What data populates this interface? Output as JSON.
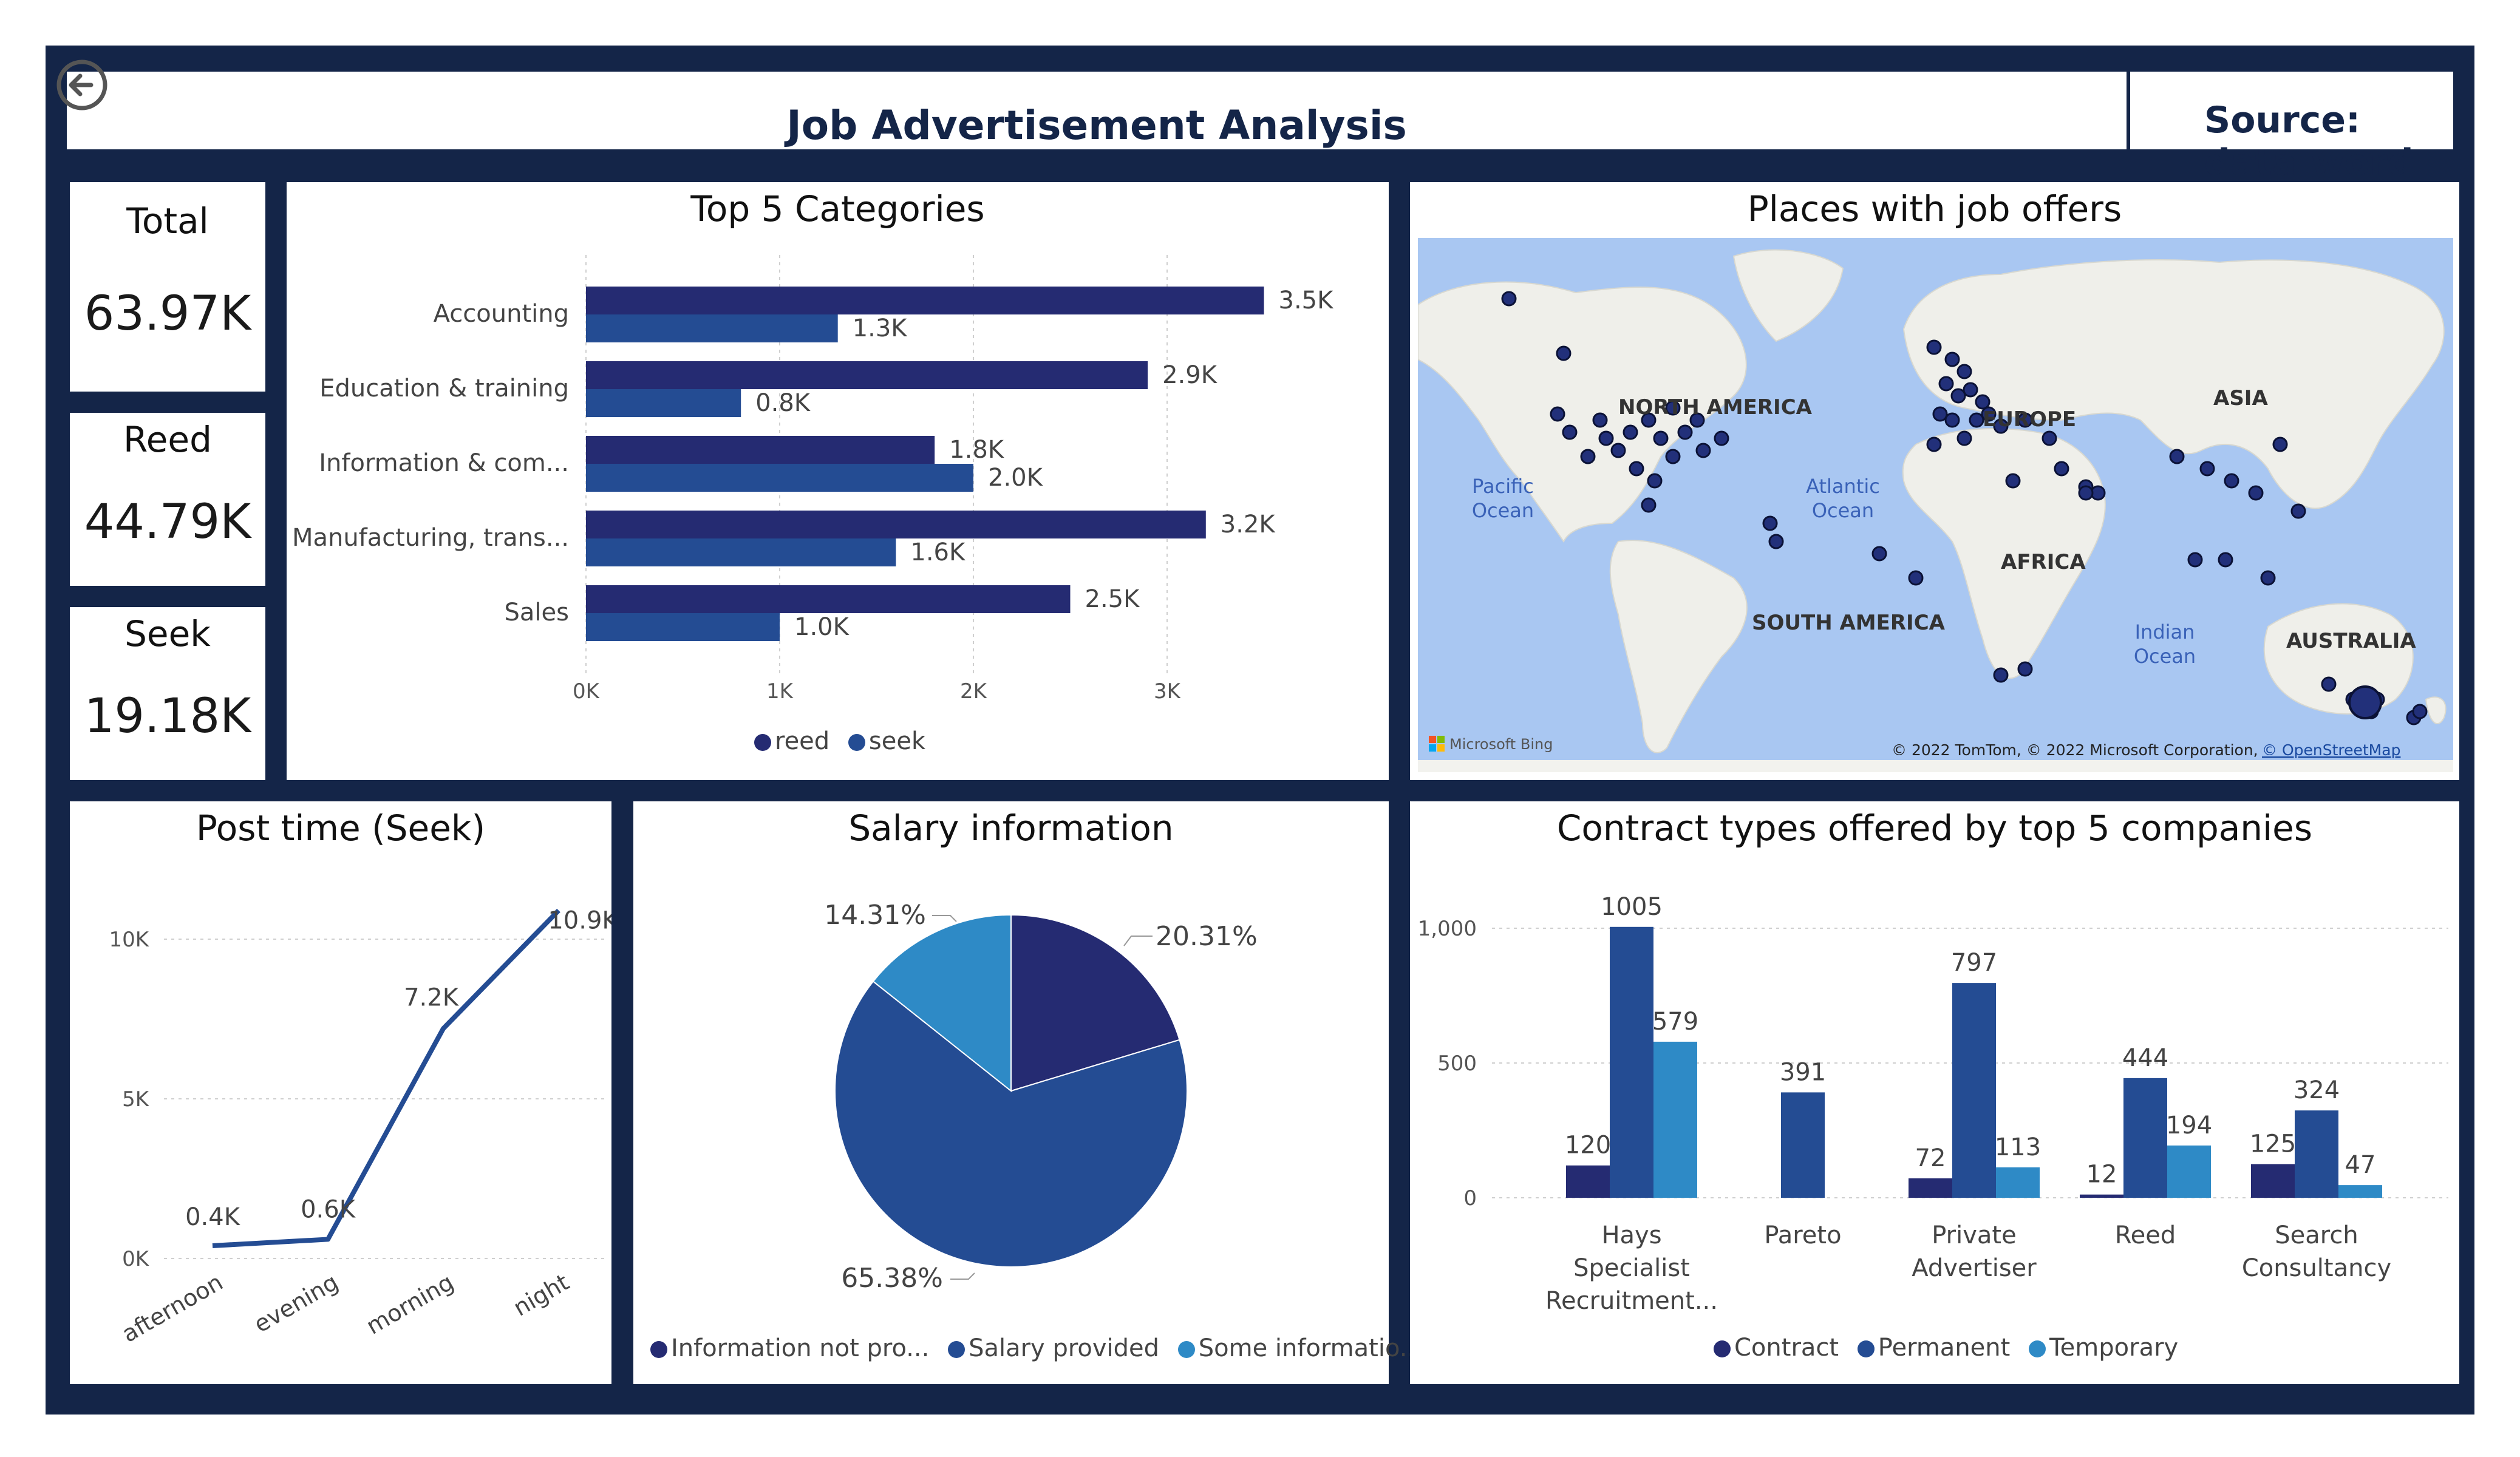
{
  "header": {
    "title": "Job Advertisement Analysis",
    "source": "Source: data.word",
    "back_icon": "back-arrow-icon"
  },
  "kpis": [
    {
      "label": "Total",
      "value": "63.97K"
    },
    {
      "label": "Reed",
      "value": "44.79K"
    },
    {
      "label": "Seek",
      "value": "19.18K"
    }
  ],
  "colors": {
    "navy": "#142548",
    "reed": "#252B72",
    "seek": "#244C93",
    "light": "#2E8AC6"
  },
  "top5": {
    "title": "Top 5 Categories",
    "legend": [
      "reed",
      "seek"
    ],
    "ticks": [
      "0K",
      "1K",
      "2K",
      "3K"
    ],
    "categories": [
      "Accounting",
      "Education & training",
      "Information & com...",
      "Manufacturing, trans...",
      "Sales"
    ],
    "reed_labels": [
      "3.5K",
      "2.9K",
      "1.8K",
      "3.2K",
      "2.5K"
    ],
    "seek_labels": [
      "1.3K",
      "0.8K",
      "2.0K",
      "1.6K",
      "1.0K"
    ]
  },
  "map": {
    "title": "Places with job offers",
    "labels": {
      "north_america": "NORTH AMERICA",
      "europe": "EUROPE",
      "asia": "ASIA",
      "africa": "AFRICA",
      "south_america": "SOUTH AMERICA",
      "australia": "AUSTRALIA",
      "pacific": "Pacific Ocean",
      "atlantic": "Atlantic Ocean",
      "indian": "Indian Ocean"
    },
    "brand": "Microsoft Bing",
    "copyright": "© 2022 TomTom, © 2022 Microsoft Corporation,",
    "osm_link": "© OpenStreetMap"
  },
  "post_time": {
    "title": "Post time (Seek)",
    "ticks": [
      "0K",
      "5K",
      "10K"
    ],
    "point_labels": [
      "0.4K",
      "0.6K",
      "7.2K",
      "10.9K"
    ]
  },
  "salary": {
    "title": "Salary information",
    "slice_labels": [
      "20.31%",
      "65.38%",
      "14.31%"
    ],
    "legend": [
      "Information not pro...",
      "Salary provided",
      "Some informatio..."
    ]
  },
  "contract": {
    "title": "Contract types offered by top 5 companies",
    "ticks": [
      "0",
      "500",
      "1,000"
    ],
    "company_lines": [
      [
        "Hays",
        "Specialist",
        "Recruitment..."
      ],
      [
        "Pareto"
      ],
      [
        "Private",
        "Advertiser"
      ],
      [
        "Reed"
      ],
      [
        "Search",
        "Consultancy"
      ]
    ],
    "legend": [
      "Contract",
      "Permanent",
      "Temporary"
    ]
  },
  "chart_data": [
    {
      "type": "bar",
      "title": "Top 5 Categories",
      "categories": [
        "Accounting",
        "Education & training",
        "Information & com...",
        "Manufacturing, trans...",
        "Sales"
      ],
      "series": [
        {
          "name": "reed",
          "values": [
            3500,
            2900,
            1800,
            3200,
            2500
          ]
        },
        {
          "name": "seek",
          "values": [
            1300,
            800,
            2000,
            1600,
            1000
          ]
        }
      ],
      "xlim": [
        0,
        3500
      ]
    },
    {
      "type": "line",
      "title": "Post time (Seek)",
      "x": [
        "afternoon",
        "evening",
        "morning",
        "night"
      ],
      "values": [
        400,
        600,
        7200,
        10900
      ],
      "ylim": [
        0,
        11000
      ]
    },
    {
      "type": "pie",
      "title": "Salary information",
      "labels": [
        "Information not pro...",
        "Salary provided",
        "Some informatio..."
      ],
      "values": [
        20.31,
        65.38,
        14.31
      ]
    },
    {
      "type": "bar",
      "title": "Contract types offered by top 5 companies",
      "categories": [
        "Hays Specialist Recruitment...",
        "Pareto",
        "Private Advertiser",
        "Reed",
        "Search Consultancy"
      ],
      "series": [
        {
          "name": "Contract",
          "values": [
            120,
            null,
            72,
            12,
            125
          ]
        },
        {
          "name": "Permanent",
          "values": [
            1005,
            391,
            797,
            444,
            324
          ]
        },
        {
          "name": "Temporary",
          "values": [
            579,
            null,
            113,
            194,
            47
          ]
        }
      ],
      "ylim": [
        0,
        1000
      ]
    }
  ]
}
